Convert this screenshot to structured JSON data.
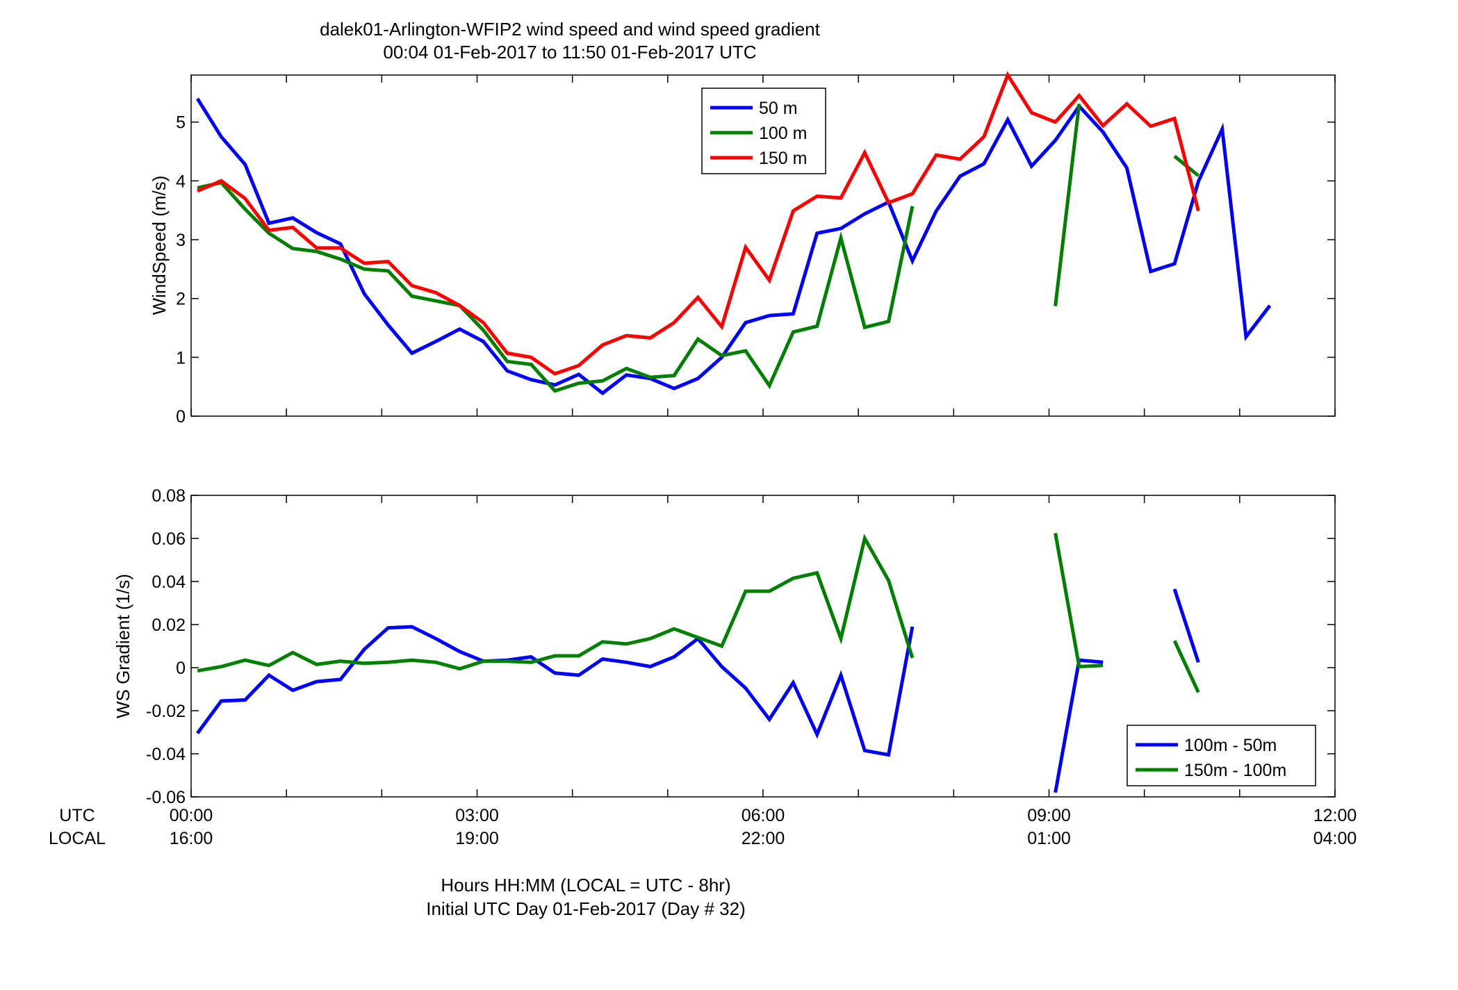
{
  "figure": {
    "title_line1": "dalek01-Arlington-WFIP2  wind speed and wind speed gradient",
    "title_line2": "00:04 01-Feb-2017 to 11:50 01-Feb-2017  UTC",
    "utc_row_label": "UTC",
    "local_row_label": "LOCAL",
    "xlabel_line1": "Hours HH:MM  (LOCAL = UTC - 8hr)",
    "xlabel_line2": "Initial UTC Day 01-Feb-2017 (Day # 32)",
    "x_ticks_utc": [
      "00:00",
      "03:00",
      "06:00",
      "09:00",
      "12:00"
    ],
    "x_ticks_local": [
      "16:00",
      "19:00",
      "22:00",
      "01:00",
      "04:00"
    ],
    "x_tick_hours": [
      0,
      3,
      6,
      9,
      12
    ]
  },
  "chart_data": [
    {
      "type": "line",
      "ylabel": "WindSpeed (m/s)",
      "xlim": [
        0,
        12
      ],
      "ylim": [
        0,
        5.8
      ],
      "y_ticks": [
        0,
        1,
        2,
        3,
        4,
        5
      ],
      "y_tick_labels": [
        "0",
        "1",
        "2",
        "3",
        "4",
        "5"
      ],
      "grid": false,
      "legend_position": "top-center",
      "series": [
        {
          "name": "50 m",
          "color": "#0000ff",
          "x": [
            0.0667,
            0.3167,
            0.5667,
            0.8167,
            1.0667,
            1.3167,
            1.5667,
            1.8167,
            2.0667,
            2.3167,
            2.5667,
            2.8167,
            3.0667,
            3.3167,
            3.5667,
            3.8167,
            4.0667,
            4.3167,
            4.5667,
            4.8167,
            5.0667,
            5.3167,
            5.5667,
            5.8167,
            6.0667,
            6.3167,
            6.5667,
            6.8167,
            7.0667,
            7.3167,
            7.5667,
            7.8167,
            8.0667,
            8.3167,
            8.5667,
            8.8167,
            9.0667,
            9.3167,
            9.5667,
            9.8167,
            10.0667,
            10.3167,
            10.5667,
            10.8167,
            11.0667,
            11.3167
          ],
          "values": [
            5.4,
            4.75,
            4.28,
            3.28,
            3.37,
            3.12,
            2.93,
            2.08,
            1.55,
            1.07,
            1.27,
            1.48,
            1.27,
            0.77,
            0.62,
            0.53,
            0.71,
            0.39,
            0.7,
            0.64,
            0.47,
            0.64,
            1.0,
            1.59,
            1.71,
            1.74,
            3.11,
            3.19,
            3.44,
            3.64,
            2.64,
            3.49,
            4.08,
            4.29,
            5.04,
            4.25,
            4.69,
            5.27,
            4.83,
            4.22,
            2.46,
            2.59,
            3.99,
            4.88,
            1.35,
            1.88
          ]
        },
        {
          "name": "100 m",
          "color": "#008000",
          "x": [
            0.0667,
            0.3167,
            0.5667,
            0.8167,
            1.0667,
            1.3167,
            1.5667,
            1.8167,
            2.0667,
            2.3167,
            2.5667,
            2.8167,
            3.0667,
            3.3167,
            3.5667,
            3.8167,
            4.0667,
            4.3167,
            4.5667,
            4.8167,
            5.0667,
            5.3167,
            5.5667,
            5.8167,
            6.0667,
            6.3167,
            6.5667,
            6.8167,
            7.0667,
            7.3167,
            7.5667,
            null,
            9.0667,
            9.3167,
            null,
            10.3167,
            10.5667
          ],
          "values": [
            3.88,
            3.97,
            3.52,
            3.11,
            2.85,
            2.8,
            2.67,
            2.5,
            2.47,
            2.04,
            1.96,
            1.88,
            1.46,
            0.93,
            0.88,
            0.43,
            0.56,
            0.6,
            0.81,
            0.66,
            0.69,
            1.31,
            1.03,
            1.11,
            0.52,
            1.43,
            1.53,
            3.03,
            1.51,
            1.61,
            3.57,
            null,
            1.87,
            5.31,
            null,
            4.42,
            4.09
          ]
        },
        {
          "name": "150 m",
          "color": "#ff0000",
          "x": [
            0.0667,
            0.3167,
            0.5667,
            0.8167,
            1.0667,
            1.3167,
            1.5667,
            1.8167,
            2.0667,
            2.3167,
            2.5667,
            2.8167,
            3.0667,
            3.3167,
            3.5667,
            3.8167,
            4.0667,
            4.3167,
            4.5667,
            4.8167,
            5.0667,
            5.3167,
            5.5667,
            5.8167,
            6.0667,
            6.3167,
            6.5667,
            6.8167,
            7.0667,
            7.3167,
            7.5667,
            7.8167,
            8.0667,
            8.3167,
            8.5667,
            8.8167,
            9.0667,
            9.3167,
            9.5667,
            9.8167,
            10.0667,
            10.3167,
            10.5667
          ],
          "values": [
            3.83,
            4.0,
            3.7,
            3.16,
            3.21,
            2.86,
            2.86,
            2.6,
            2.63,
            2.22,
            2.1,
            1.88,
            1.59,
            1.07,
            1.0,
            0.72,
            0.86,
            1.21,
            1.37,
            1.33,
            1.59,
            2.02,
            1.52,
            2.87,
            2.31,
            3.49,
            3.74,
            3.71,
            4.48,
            3.63,
            3.78,
            4.44,
            4.37,
            4.75,
            5.8,
            5.16,
            5.0,
            5.45,
            4.94,
            5.31,
            4.93,
            5.06,
            3.49
          ]
        }
      ]
    },
    {
      "type": "line",
      "ylabel": "WS Gradient (1/s)",
      "xlim": [
        0,
        12
      ],
      "ylim": [
        -0.06,
        0.08
      ],
      "y_ticks": [
        -0.06,
        -0.04,
        -0.02,
        0,
        0.02,
        0.04,
        0.06,
        0.08
      ],
      "y_tick_labels": [
        "-0.06",
        "-0.04",
        "-0.02",
        "0",
        "0.02",
        "0.04",
        "0.06",
        "0.08"
      ],
      "grid": false,
      "legend_position": "bottom-right",
      "series": [
        {
          "name": "100m - 50m",
          "color": "#0000ff",
          "x": [
            0.0667,
            0.3167,
            0.5667,
            0.8167,
            1.0667,
            1.3167,
            1.5667,
            1.8167,
            2.0667,
            2.3167,
            2.5667,
            2.8167,
            3.0667,
            3.3167,
            3.5667,
            3.8167,
            4.0667,
            4.3167,
            4.5667,
            4.8167,
            5.0667,
            5.3167,
            5.5667,
            5.8167,
            6.0667,
            6.3167,
            6.5667,
            6.8167,
            7.0667,
            7.3167,
            7.5667,
            null,
            9.0667,
            9.3167,
            9.5667,
            null,
            10.3167,
            10.5667
          ],
          "values": [
            -0.0305,
            -0.0155,
            -0.015,
            -0.0035,
            -0.0105,
            -0.0065,
            -0.0055,
            0.0085,
            0.0185,
            0.019,
            0.0135,
            0.0075,
            0.003,
            0.0035,
            0.005,
            -0.0025,
            -0.0035,
            0.004,
            0.0025,
            0.0005,
            0.005,
            0.0135,
            0.0005,
            -0.0095,
            -0.024,
            -0.007,
            -0.031,
            -0.0035,
            -0.0385,
            -0.0405,
            0.019,
            null,
            -0.058,
            0.0035,
            0.0025,
            null,
            0.0365,
            0.0025
          ]
        },
        {
          "name": "150m - 100m",
          "color": "#008000",
          "x": [
            0.0667,
            0.3167,
            0.5667,
            0.8167,
            1.0667,
            1.3167,
            1.5667,
            1.8167,
            2.0667,
            2.3167,
            2.5667,
            2.8167,
            3.0667,
            3.3167,
            3.5667,
            3.8167,
            4.0667,
            4.3167,
            4.5667,
            4.8167,
            5.0667,
            5.3167,
            5.5667,
            5.8167,
            6.0667,
            6.3167,
            6.5667,
            6.8167,
            7.0667,
            7.3167,
            7.5667,
            null,
            9.0667,
            9.3167,
            9.5667,
            null,
            10.3167,
            10.5667
          ],
          "values": [
            -0.0015,
            0.0005,
            0.0035,
            0.001,
            0.007,
            0.0015,
            0.003,
            0.002,
            0.0025,
            0.0035,
            0.0025,
            -0.0005,
            0.003,
            0.003,
            0.0025,
            0.0055,
            0.0055,
            0.012,
            0.011,
            0.0135,
            0.018,
            0.014,
            0.01,
            0.0355,
            0.0355,
            0.0415,
            0.044,
            0.0135,
            0.06,
            0.0405,
            0.0045,
            null,
            0.0625,
            0.0005,
            0.001,
            null,
            0.0125,
            -0.0115
          ]
        }
      ]
    }
  ]
}
